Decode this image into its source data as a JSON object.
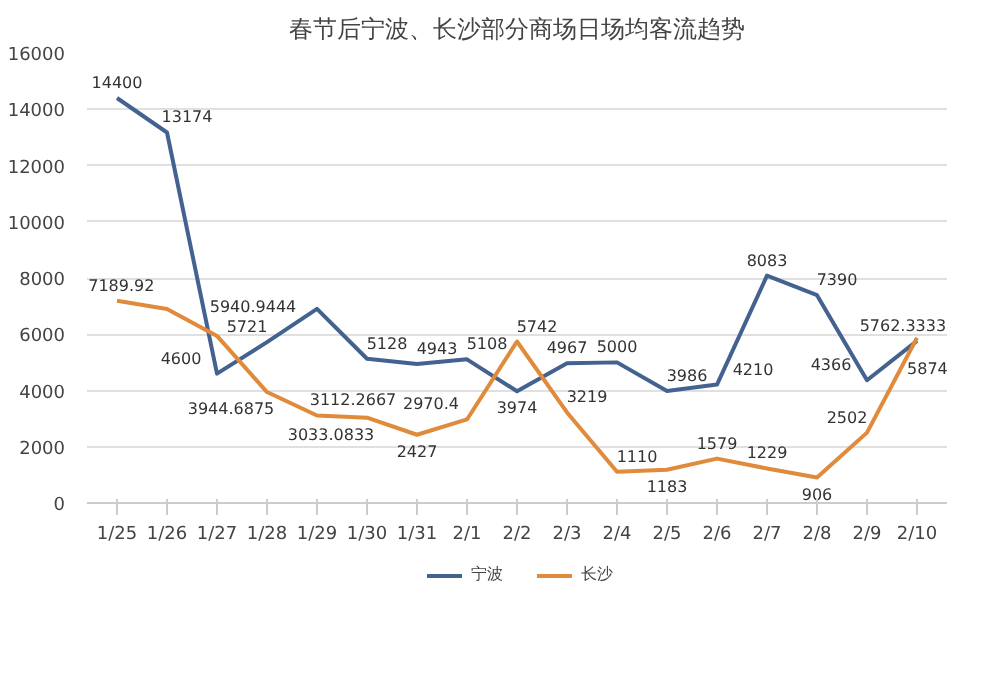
{
  "chart_data": {
    "type": "line",
    "title": "春节后宁波、长沙部分商场日场均客流趋势",
    "categories": [
      "1/25",
      "1/26",
      "1/27",
      "1/28",
      "1/29",
      "1/30",
      "1/31",
      "2/1",
      "2/2",
      "2/3",
      "2/4",
      "2/5",
      "2/6",
      "2/7",
      "2/8",
      "2/9",
      "2/10"
    ],
    "series": [
      {
        "name": "宁波",
        "color": "#44628f",
        "values": [
          14400,
          13174,
          4600,
          5721,
          6900,
          5128,
          4943,
          5108,
          3974,
          4967,
          5000,
          3986,
          4210,
          8083,
          7390,
          4366,
          5762.3333
        ],
        "value_labels": [
          "14400",
          "13174",
          "4600",
          "5721",
          null,
          "5128",
          "4943",
          "5108",
          "3974",
          "4967",
          "5000",
          "3986",
          "4210",
          "8083",
          "7390",
          "4366",
          "5762.3333"
        ]
      },
      {
        "name": "长沙",
        "color": "#e08a3c",
        "values": [
          7189.92,
          6900,
          5940.9444,
          3944.6875,
          3112.2667,
          3033.0833,
          2427,
          2970.4,
          5742,
          3219,
          1110,
          1183,
          1579,
          1229,
          906,
          2502,
          5874
        ],
        "value_labels": [
          "7189.92",
          null,
          "5940.9444",
          "3944.6875",
          "3112.2667",
          "3033.0833",
          "2427",
          "2970.4",
          "5742",
          "3219",
          "1110",
          "1183",
          "1579",
          "1229",
          "906",
          "2502",
          "5874"
        ]
      }
    ],
    "ylim": [
      0,
      16000
    ],
    "yticks": [
      0,
      2000,
      4000,
      6000,
      8000,
      10000,
      12000,
      14000,
      16000
    ],
    "grid": "y",
    "legend": "bottom",
    "marker": "none",
    "line_style": "solid"
  }
}
